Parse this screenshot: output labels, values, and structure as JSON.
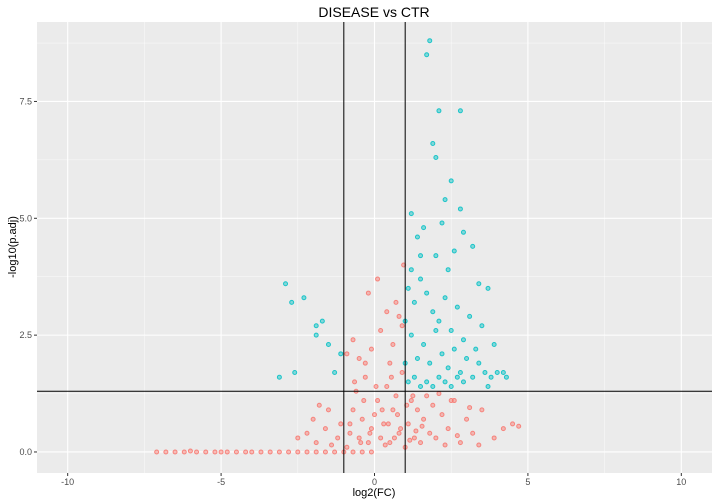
{
  "chart_data": {
    "type": "scatter",
    "title": "DISEASE vs CTR",
    "xlabel": "log2(FC)",
    "ylabel": "-log10(p.adj)",
    "xlim": [
      -11,
      11
    ],
    "ylim": [
      -0.45,
      9.2
    ],
    "x_ticks": [
      -10,
      -5,
      0,
      5,
      10
    ],
    "x_tick_labels": [
      "-10",
      "-5",
      "0",
      "5",
      "10"
    ],
    "y_ticks": [
      0,
      2.5,
      5,
      7.5
    ],
    "y_tick_labels": [
      "0.0",
      "2.5",
      "5.0",
      "7.5"
    ],
    "grid": true,
    "legend": "none",
    "colors": {
      "panel": "#EBEBEB",
      "grid_major": "#FFFFFF",
      "not_significant": "#F8766D",
      "significant": "#00BFC4",
      "threshold_line": "#000000"
    },
    "thresholds": {
      "log2fc": [
        -1,
        1
      ],
      "neg_log10_padj": 1.3
    },
    "series": [
      {
        "group": "not-significant",
        "color": "#F8766D",
        "points": [
          [
            -7.1,
            0
          ],
          [
            -6.8,
            0
          ],
          [
            -6.5,
            0
          ],
          [
            -6.2,
            0
          ],
          [
            -6.0,
            0.02
          ],
          [
            -5.8,
            0
          ],
          [
            -5.5,
            0
          ],
          [
            -5.2,
            0
          ],
          [
            -5.0,
            0
          ],
          [
            -4.8,
            0
          ],
          [
            -4.5,
            0
          ],
          [
            -4.2,
            0
          ],
          [
            -4.0,
            0
          ],
          [
            -3.7,
            0
          ],
          [
            -3.4,
            0
          ],
          [
            -3.1,
            0
          ],
          [
            -2.8,
            0
          ],
          [
            -2.5,
            0
          ],
          [
            -2.2,
            0
          ],
          [
            -1.9,
            0
          ],
          [
            -1.6,
            0
          ],
          [
            -1.3,
            0
          ],
          [
            -1.0,
            0
          ],
          [
            -0.7,
            0
          ],
          [
            -0.4,
            0
          ],
          [
            -0.1,
            0
          ],
          [
            -2.5,
            0.3
          ],
          [
            -2.2,
            0.4
          ],
          [
            -1.9,
            0.2
          ],
          [
            -1.6,
            0.5
          ],
          [
            -1.4,
            0.15
          ],
          [
            -1.2,
            0.3
          ],
          [
            -2.0,
            0.7
          ],
          [
            -1.8,
            1.0
          ],
          [
            -1.1,
            0.6
          ],
          [
            -1.5,
            0.9
          ],
          [
            -0.9,
            0.1
          ],
          [
            -0.8,
            0.4
          ],
          [
            -0.7,
            0.9
          ],
          [
            -0.6,
            1.3
          ],
          [
            -0.5,
            0.3
          ],
          [
            -0.4,
            0.7
          ],
          [
            -0.3,
            1.6
          ],
          [
            -0.2,
            0.2
          ],
          [
            -0.1,
            0.5
          ],
          [
            0.0,
            0.8
          ],
          [
            0.1,
            1.1
          ],
          [
            0.2,
            0.3
          ],
          [
            0.3,
            0.6
          ],
          [
            0.4,
            1.4
          ],
          [
            0.5,
            0.2
          ],
          [
            0.6,
            0.9
          ],
          [
            0.7,
            1.2
          ],
          [
            0.8,
            0.4
          ],
          [
            0.9,
            1.7
          ],
          [
            -0.9,
            2.1
          ],
          [
            -0.7,
            2.4
          ],
          [
            -0.5,
            2.0
          ],
          [
            -0.3,
            1.9
          ],
          [
            -0.1,
            2.2
          ],
          [
            0.1,
            3.7
          ],
          [
            0.2,
            2.6
          ],
          [
            0.4,
            3.0
          ],
          [
            0.6,
            2.3
          ],
          [
            0.8,
            2.9
          ],
          [
            0.9,
            2.7
          ],
          [
            -0.2,
            3.4
          ],
          [
            0.5,
            1.9
          ],
          [
            0.7,
            3.2
          ],
          [
            0.95,
            4.0
          ],
          [
            -0.8,
            0.6
          ],
          [
            -0.65,
            1.5
          ],
          [
            -0.45,
            0.2
          ],
          [
            -0.35,
            1.1
          ],
          [
            -0.15,
            0.4
          ],
          [
            0.05,
            1.4
          ],
          [
            0.25,
            0.9
          ],
          [
            0.35,
            0.15
          ],
          [
            0.45,
            0.6
          ],
          [
            0.55,
            1.6
          ],
          [
            0.65,
            0.3
          ],
          [
            0.75,
            0.8
          ],
          [
            0.85,
            0.5
          ],
          [
            1.0,
            0.1
          ],
          [
            1.1,
            0.6
          ],
          [
            1.2,
            1.1
          ],
          [
            1.3,
            0.3
          ],
          [
            1.4,
            0.9
          ],
          [
            1.5,
            0.2
          ],
          [
            1.6,
            0.7
          ],
          [
            1.7,
            1.2
          ],
          [
            1.8,
            0.4
          ],
          [
            1.9,
            1.0
          ],
          [
            2.0,
            0.3
          ],
          [
            2.2,
            0.8
          ],
          [
            2.4,
            0.5
          ],
          [
            2.6,
            1.1
          ],
          [
            2.8,
            0.2
          ],
          [
            3.0,
            0.7
          ],
          [
            3.2,
            0.4
          ],
          [
            3.5,
            0.9
          ],
          [
            3.9,
            0.3
          ],
          [
            4.2,
            0.5
          ],
          [
            4.5,
            0.6
          ],
          [
            4.7,
            0.55
          ],
          [
            3.4,
            0.15
          ],
          [
            2.1,
            1.25
          ],
          [
            2.5,
            1.1
          ],
          [
            1.25,
            1.2
          ],
          [
            1.05,
            1.0
          ],
          [
            1.15,
            0.25
          ],
          [
            1.35,
            0.45
          ],
          [
            1.55,
            0.55
          ],
          [
            2.3,
            0.15
          ],
          [
            2.7,
            0.35
          ],
          [
            3.1,
            0.95
          ]
        ]
      },
      {
        "group": "significant",
        "color": "#00BFC4",
        "points": [
          [
            1.8,
            8.8
          ],
          [
            1.7,
            8.5
          ],
          [
            2.1,
            7.3
          ],
          [
            2.8,
            7.3
          ],
          [
            1.9,
            6.6
          ],
          [
            2.0,
            6.3
          ],
          [
            2.5,
            5.8
          ],
          [
            2.3,
            5.4
          ],
          [
            2.8,
            5.2
          ],
          [
            1.2,
            5.1
          ],
          [
            1.6,
            4.8
          ],
          [
            2.2,
            4.9
          ],
          [
            2.9,
            4.7
          ],
          [
            1.4,
            4.6
          ],
          [
            3.2,
            4.4
          ],
          [
            2.6,
            4.3
          ],
          [
            2.0,
            4.2
          ],
          [
            1.1,
            3.5
          ],
          [
            1.3,
            3.2
          ],
          [
            1.5,
            3.7
          ],
          [
            1.7,
            3.4
          ],
          [
            1.9,
            3.0
          ],
          [
            2.1,
            2.8
          ],
          [
            2.3,
            3.3
          ],
          [
            2.5,
            2.6
          ],
          [
            2.7,
            3.1
          ],
          [
            2.9,
            2.4
          ],
          [
            3.1,
            2.9
          ],
          [
            3.3,
            2.2
          ],
          [
            3.5,
            2.7
          ],
          [
            3.7,
            3.5
          ],
          [
            3.9,
            2.3
          ],
          [
            1.2,
            2.5
          ],
          [
            1.4,
            2.0
          ],
          [
            1.6,
            2.3
          ],
          [
            1.8,
            1.9
          ],
          [
            2.0,
            2.6
          ],
          [
            2.2,
            2.1
          ],
          [
            2.4,
            1.8
          ],
          [
            2.6,
            2.2
          ],
          [
            2.8,
            1.7
          ],
          [
            3.0,
            2.0
          ],
          [
            3.2,
            1.6
          ],
          [
            3.4,
            1.9
          ],
          [
            3.6,
            1.7
          ],
          [
            3.8,
            1.6
          ],
          [
            4.0,
            1.7
          ],
          [
            1.1,
            1.5
          ],
          [
            1.3,
            1.6
          ],
          [
            1.5,
            1.4
          ],
          [
            1.7,
            1.5
          ],
          [
            1.9,
            1.4
          ],
          [
            2.1,
            1.6
          ],
          [
            2.3,
            1.5
          ],
          [
            2.5,
            1.4
          ],
          [
            2.7,
            1.6
          ],
          [
            2.9,
            1.5
          ],
          [
            1.0,
            1.9
          ],
          [
            1.0,
            2.8
          ],
          [
            1.2,
            3.9
          ],
          [
            1.5,
            4.2
          ],
          [
            2.4,
            3.9
          ],
          [
            3.4,
            3.6
          ],
          [
            3.7,
            1.4
          ],
          [
            4.2,
            1.7
          ],
          [
            4.3,
            1.6
          ],
          [
            -2.9,
            3.6
          ],
          [
            -2.7,
            3.2
          ],
          [
            -2.3,
            3.3
          ],
          [
            -3.1,
            1.6
          ],
          [
            -2.6,
            1.7
          ],
          [
            -1.9,
            2.7
          ],
          [
            -1.7,
            2.8
          ],
          [
            -1.5,
            2.3
          ],
          [
            -1.3,
            1.7
          ],
          [
            -1.1,
            2.1
          ],
          [
            -1.9,
            2.5
          ]
        ]
      }
    ]
  }
}
